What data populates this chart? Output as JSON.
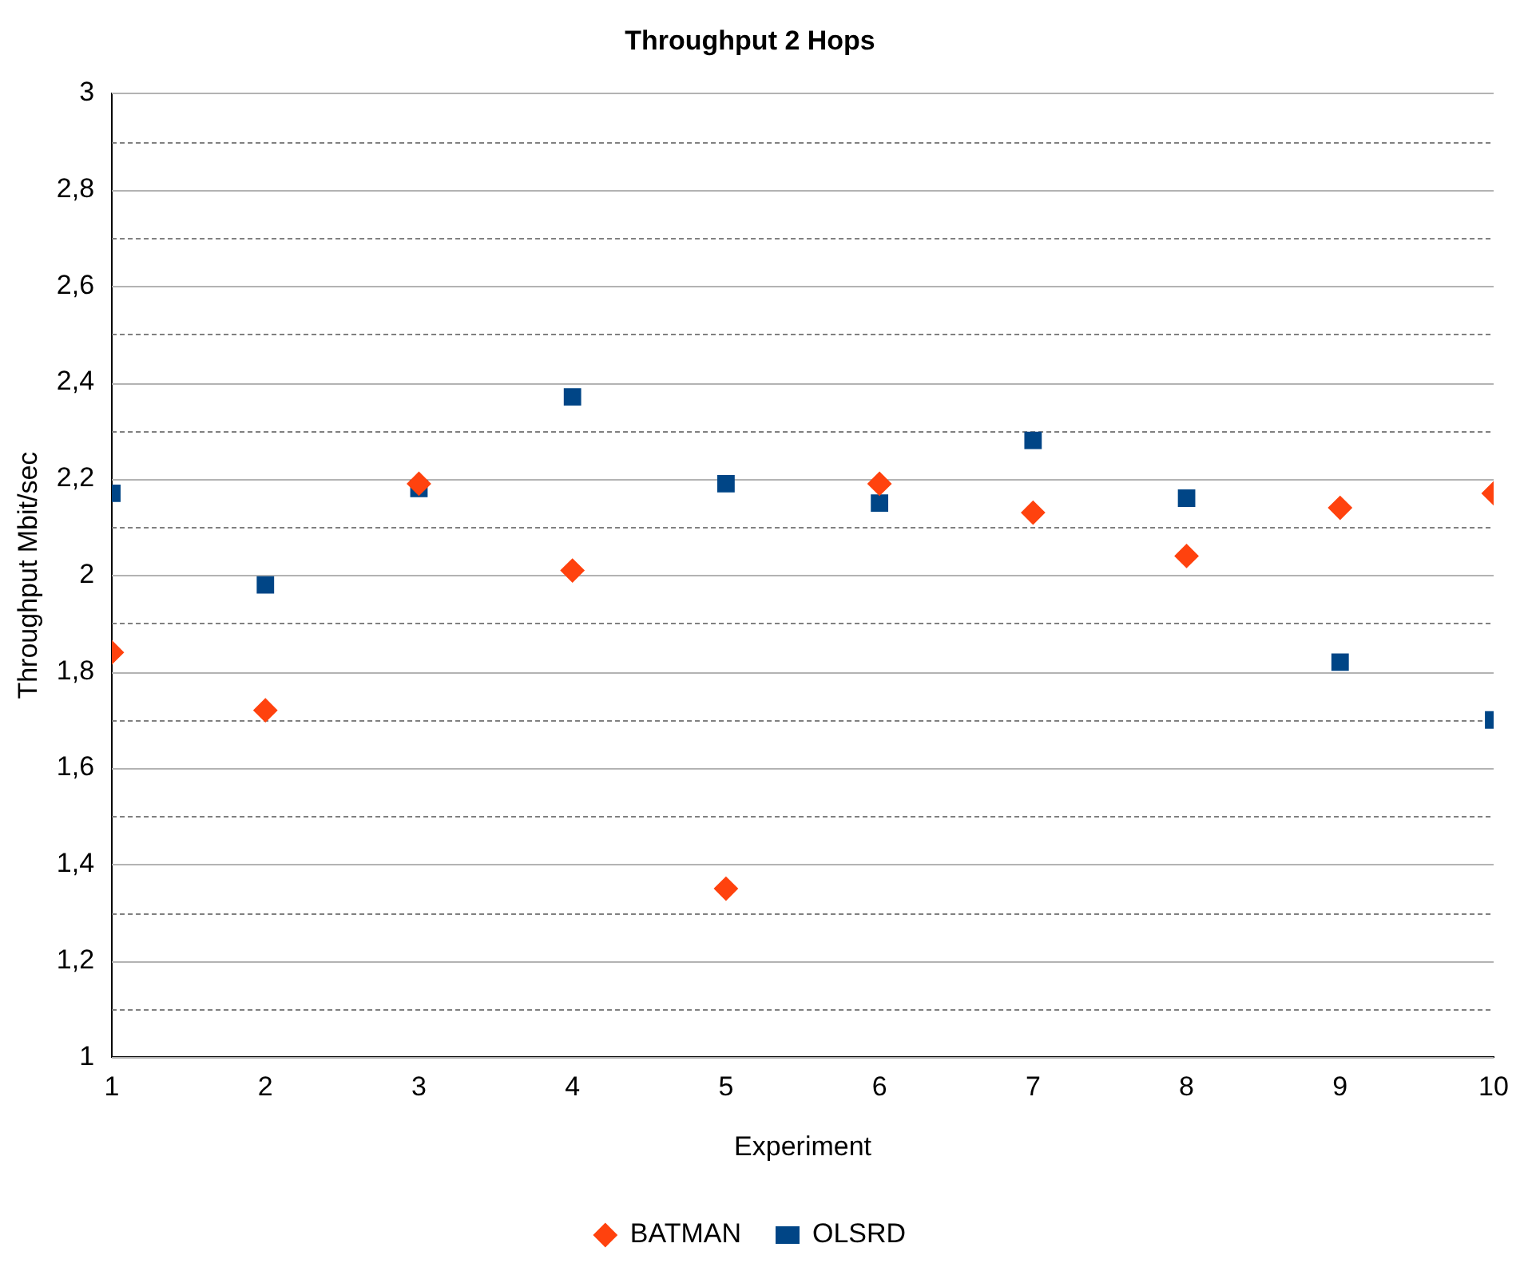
{
  "chart_data": {
    "type": "scatter",
    "title": "Throughput 2 Hops",
    "xlabel": "Experiment",
    "ylabel": "Throughput Mbit/sec",
    "x": [
      1,
      2,
      3,
      4,
      5,
      6,
      7,
      8,
      9,
      10
    ],
    "series": [
      {
        "name": "OLSRD",
        "color": "#004586",
        "marker": "square",
        "values": [
          2.17,
          1.98,
          2.18,
          2.37,
          2.19,
          2.15,
          2.28,
          2.16,
          1.82,
          1.7
        ]
      },
      {
        "name": "BATMAN",
        "color": "#ff420e",
        "marker": "diamond",
        "values": [
          1.84,
          1.72,
          2.19,
          2.01,
          1.35,
          2.19,
          2.13,
          2.04,
          2.14,
          2.17
        ]
      }
    ],
    "xlim": [
      1,
      10
    ],
    "xticks": [
      1,
      2,
      3,
      4,
      5,
      6,
      7,
      8,
      9,
      10
    ],
    "ylim": [
      1,
      3
    ],
    "yticks": [
      1,
      {
        "value": 1.1,
        "label": null
      },
      {
        "value": 1.2,
        "label": "1,2"
      },
      {
        "value": 1.3,
        "label": null
      },
      {
        "value": 1.4,
        "label": "1,4"
      },
      {
        "value": 1.5,
        "label": null
      },
      {
        "value": 1.6,
        "label": "1,6"
      },
      {
        "value": 1.7,
        "label": null
      },
      {
        "value": 1.8,
        "label": "1,8"
      },
      {
        "value": 1.9,
        "label": null
      },
      2,
      {
        "value": 2.1,
        "label": null
      },
      {
        "value": 2.2,
        "label": "2,2"
      },
      {
        "value": 2.3,
        "label": null
      },
      {
        "value": 2.4,
        "label": "2,4"
      },
      {
        "value": 2.5,
        "label": null
      },
      {
        "value": 2.6,
        "label": "2,6"
      },
      {
        "value": 2.7,
        "label": null
      },
      {
        "value": 2.8,
        "label": "2,8"
      },
      {
        "value": 2.9,
        "label": null
      },
      3
    ],
    "grid": "y",
    "legend": "bottom"
  }
}
